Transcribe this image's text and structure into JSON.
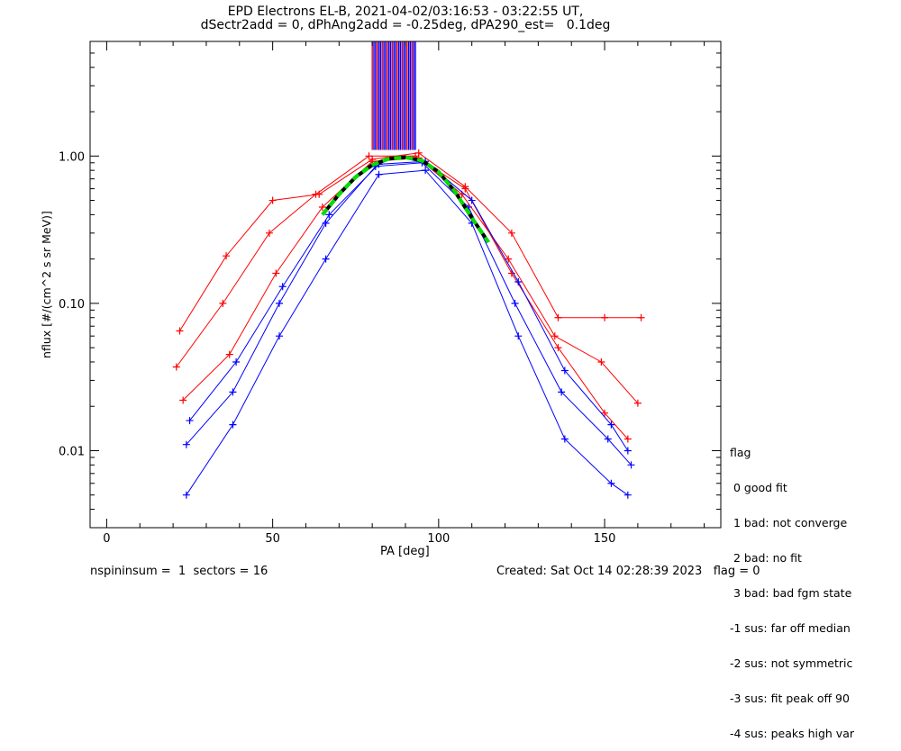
{
  "title_line1": "EPD Electrons EL-B, 2021-04-02/03:16:53 - 03:22:55 UT,",
  "title_line2": "dSectr2add = 0, dPhAng2add = -0.25deg, dPA290_est=   0.1deg",
  "footer_left": "nspininsum =  1  sectors = 16",
  "footer_right": "Created: Sat Oct 14 02:28:39 2023   flag = 0",
  "legend": {
    "title": "flag",
    "items": [
      " 0 good fit",
      " 1 bad: not converge",
      " 2 bad: no fit",
      " 3 bad: bad fgm state",
      "-1 sus: far off median",
      "-2 sus: not symmetric",
      "-3 sus: fit peak off 90",
      "-4 sus: peaks high var"
    ]
  },
  "colors": {
    "series_a": "#ff0000",
    "series_b": "#0000ff",
    "fit": "#00e000",
    "axes": "#000000"
  },
  "chart_data": {
    "type": "line",
    "title": "EPD Electrons EL-B, 2021-04-02/03:16:53 - 03:22:55 UT,",
    "xlabel": "PA [deg]",
    "ylabel": "nflux [#/(cm^2 s sr MeV)]",
    "xlim": [
      -5,
      185
    ],
    "ylim": [
      0.003,
      6.0
    ],
    "yscale": "log",
    "x_ticks": [
      0,
      50,
      100,
      150
    ],
    "x_tick_labels": [
      "0",
      "50",
      "100",
      "150"
    ],
    "y_ticks": [
      0.01,
      0.1,
      1.0
    ],
    "y_tick_labels": [
      "0.01",
      "0.10",
      "1.00"
    ],
    "grid": false,
    "legend_position": "bottom-right",
    "series": [
      {
        "color": "red",
        "x": [
          23,
          37,
          51,
          65,
          80,
          94,
          108,
          122,
          136,
          150,
          157
        ],
        "y": [
          0.022,
          0.045,
          0.16,
          0.45,
          0.92,
          0.97,
          0.6,
          0.16,
          0.05,
          0.018,
          0.012
        ]
      },
      {
        "color": "blue",
        "x": [
          24,
          38,
          52,
          66,
          81,
          95,
          109,
          123,
          137,
          151,
          158
        ],
        "y": [
          0.011,
          0.025,
          0.1,
          0.35,
          0.85,
          0.9,
          0.45,
          0.1,
          0.025,
          0.012,
          0.008
        ]
      },
      {
        "color": "red",
        "x": [
          22,
          36,
          50,
          64,
          80,
          94,
          108,
          122,
          136,
          150,
          161
        ],
        "y": [
          0.065,
          0.21,
          0.5,
          0.55,
          0.95,
          1.05,
          0.62,
          0.3,
          0.08,
          0.08,
          0.08
        ]
      },
      {
        "color": "blue",
        "x": [
          24,
          38,
          52,
          66,
          82,
          96,
          110,
          124,
          138,
          152,
          157
        ],
        "y": [
          0.005,
          0.015,
          0.06,
          0.2,
          0.75,
          0.8,
          0.35,
          0.06,
          0.012,
          0.006,
          0.005
        ]
      },
      {
        "color": "red",
        "x": [
          21,
          35,
          49,
          63,
          79,
          93,
          107,
          121,
          135,
          149,
          160
        ],
        "y": [
          0.037,
          0.1,
          0.3,
          0.55,
          1.0,
          1.0,
          0.55,
          0.2,
          0.06,
          0.04,
          0.021
        ]
      },
      {
        "color": "blue",
        "x": [
          25,
          39,
          53,
          67,
          82,
          96,
          110,
          124,
          138,
          152,
          157
        ],
        "y": [
          0.016,
          0.04,
          0.13,
          0.4,
          0.88,
          0.92,
          0.5,
          0.14,
          0.035,
          0.015,
          0.01
        ]
      }
    ],
    "pa_fit": {
      "x": [
        65,
        70,
        75,
        80,
        85,
        90,
        95,
        100,
        105,
        110,
        115
      ],
      "y": [
        0.4,
        0.55,
        0.72,
        0.87,
        0.96,
        0.98,
        0.93,
        0.78,
        0.57,
        0.38,
        0.26
      ]
    },
    "saturated_bars_x_range": [
      80,
      93
    ]
  }
}
